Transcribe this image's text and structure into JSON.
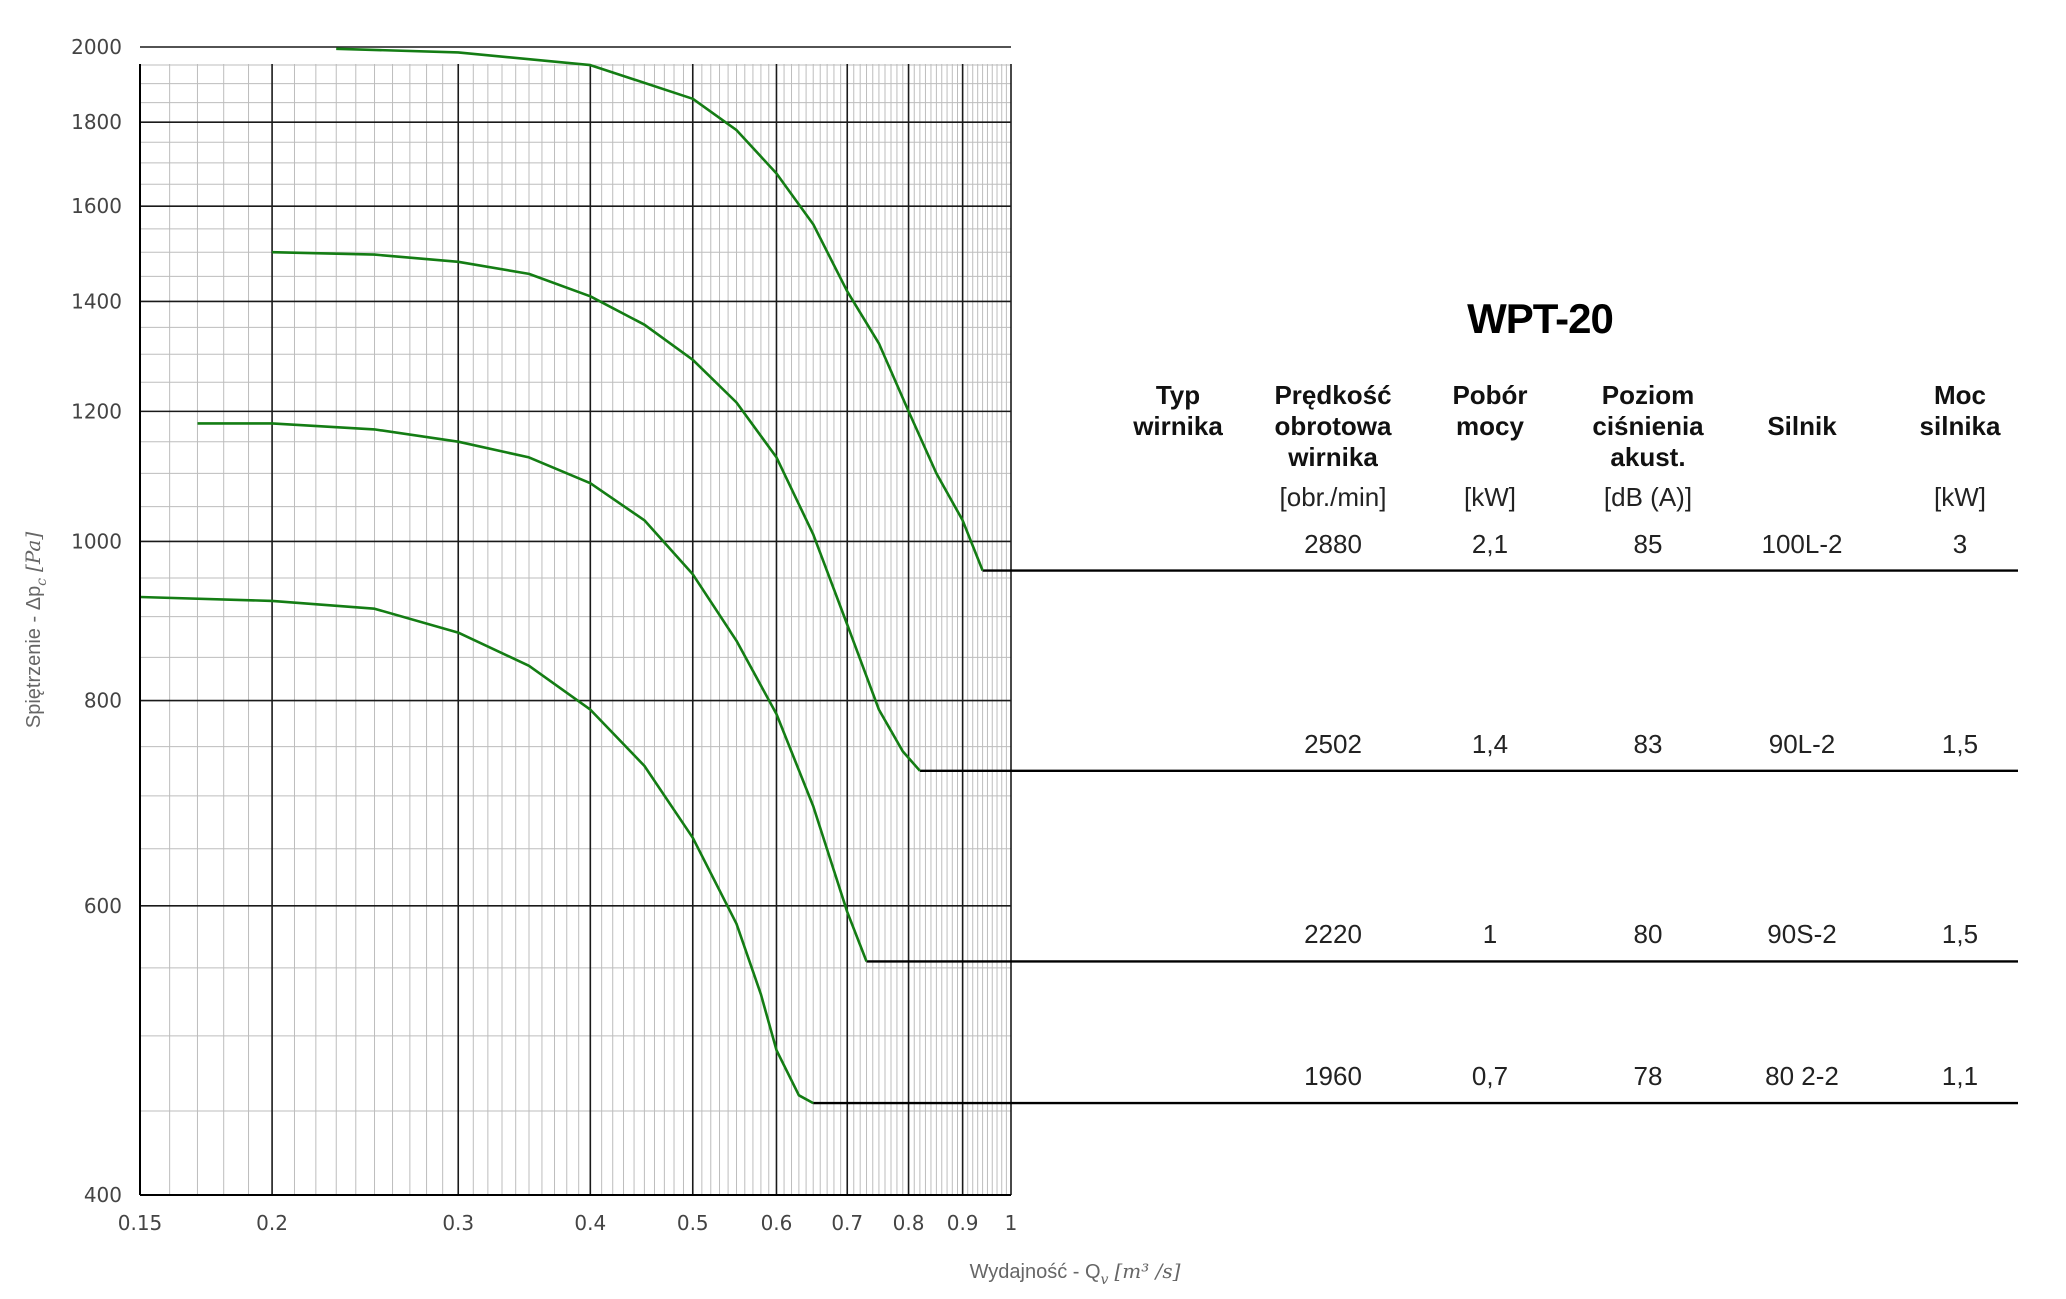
{
  "chart_data": {
    "type": "line",
    "x_scale": "log",
    "y_scale": "log",
    "xlim": [
      0.15,
      1
    ],
    "ylim": [
      400,
      2000
    ],
    "x_ticks": [
      "0.15",
      "0.2",
      "0.3",
      "0.4",
      "0.5",
      "0.6",
      "0.7",
      "0.8",
      "0.9",
      "1"
    ],
    "y_ticks": [
      "400",
      "600",
      "800",
      "1000",
      "1200",
      "1400",
      "1600",
      "1800",
      "2000"
    ],
    "xlabel": "Wydajność - Q",
    "xlabel_sub": "v",
    "xlabel_unit": "[m³ /s]",
    "ylabel": "Spiętrzenie - Δp",
    "ylabel_sub": "c",
    "ylabel_unit": "[Pa]",
    "grid": true,
    "curve_color": "#147d14",
    "series": [
      {
        "x": [
          0.23,
          0.3,
          0.4,
          0.5,
          0.55,
          0.6,
          0.65,
          0.7,
          0.75,
          0.8,
          0.85,
          0.9,
          0.94
        ],
        "y": [
          1995,
          1985,
          1950,
          1860,
          1780,
          1675,
          1560,
          1420,
          1320,
          1200,
          1100,
          1030,
          960
        ]
      },
      {
        "x": [
          0.2,
          0.25,
          0.3,
          0.35,
          0.4,
          0.45,
          0.5,
          0.55,
          0.6,
          0.65,
          0.7,
          0.75,
          0.79,
          0.82
        ],
        "y": [
          1500,
          1495,
          1480,
          1455,
          1410,
          1355,
          1290,
          1215,
          1125,
          1010,
          890,
          790,
          745,
          725
        ]
      },
      {
        "x": [
          0.17,
          0.2,
          0.25,
          0.3,
          0.35,
          0.4,
          0.45,
          0.5,
          0.55,
          0.6,
          0.65,
          0.7,
          0.73
        ],
        "y": [
          1180,
          1180,
          1170,
          1150,
          1125,
          1085,
          1030,
          955,
          870,
          785,
          690,
          595,
          555
        ]
      },
      {
        "x": [
          0.15,
          0.2,
          0.25,
          0.3,
          0.35,
          0.4,
          0.45,
          0.5,
          0.55,
          0.58,
          0.6,
          0.63,
          0.65
        ],
        "y": [
          925,
          920,
          910,
          880,
          840,
          790,
          730,
          660,
          585,
          530,
          490,
          460,
          455
        ]
      }
    ],
    "level_lines_y": [
      960,
      725,
      555,
      455
    ]
  },
  "table": {
    "title": "WPT-20",
    "headers": [
      [
        "Typ",
        "wirnika"
      ],
      [
        "Prędkość",
        "obrotowa",
        "wirnika"
      ],
      [
        "Pobór",
        "mocy"
      ],
      [
        "Poziom",
        "ciśnienia",
        "akust."
      ],
      [
        "Silnik"
      ],
      [
        "Moc",
        "silnika"
      ]
    ],
    "units": [
      "",
      "[obr./min]",
      "[kW]",
      "[dB (A)]",
      "",
      "[kW]"
    ],
    "rows": [
      [
        "",
        "2880",
        "2,1",
        "85",
        "100L-2",
        "3"
      ],
      [
        "",
        "2502",
        "1,4",
        "83",
        "90L-2",
        "1,5"
      ],
      [
        "",
        "2220",
        "1",
        "80",
        "90S-2",
        "1,5"
      ],
      [
        "",
        "1960",
        "0,7",
        "78",
        "80 2-2",
        "1,1"
      ]
    ]
  }
}
